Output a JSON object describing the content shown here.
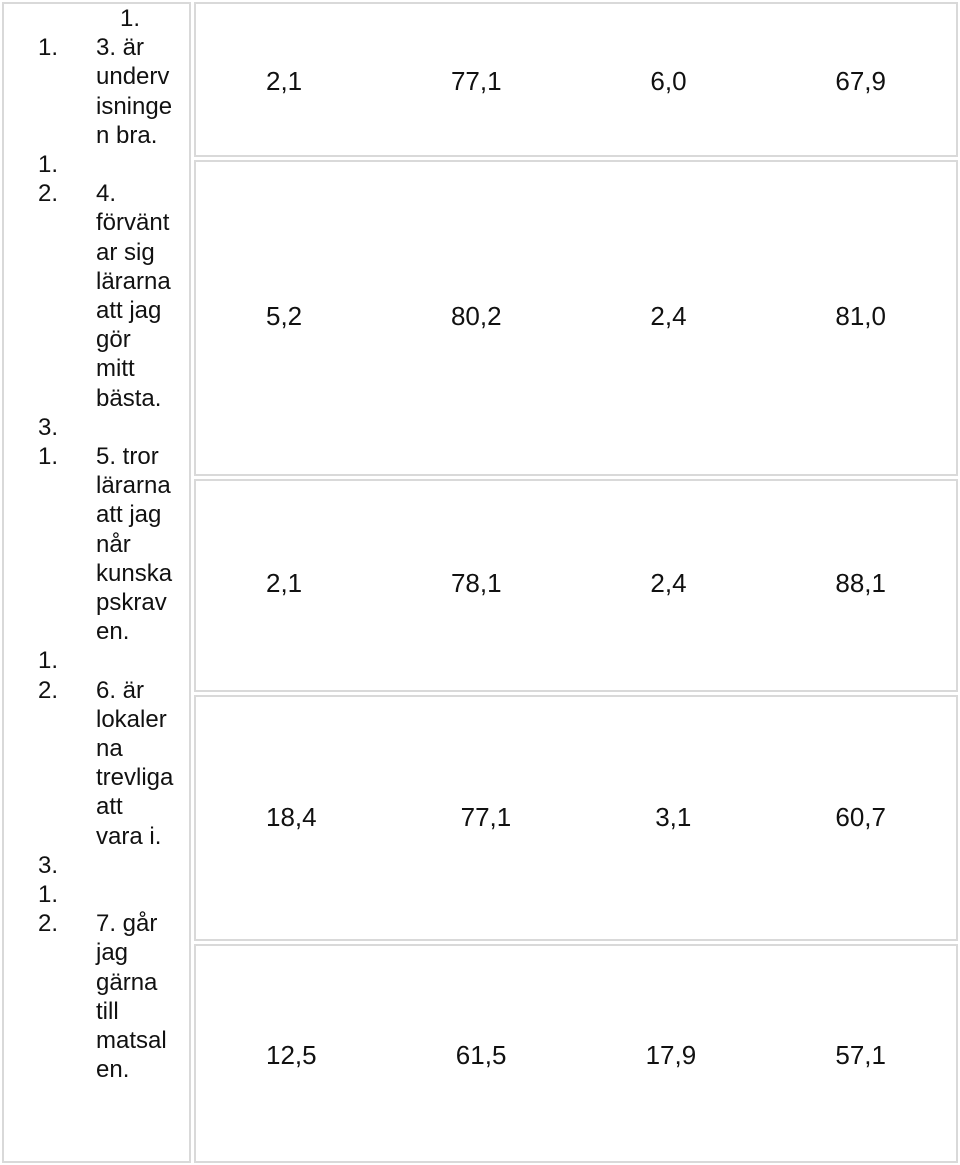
{
  "left_column": {
    "lines": [
      {
        "n": "1.",
        "text": ""
      },
      {
        "n": "1.",
        "text": "3. är"
      },
      {
        "n": "",
        "text": "underv"
      },
      {
        "n": "",
        "text": "isninge"
      },
      {
        "n": "",
        "text": "n bra."
      },
      {
        "n": "1.",
        "text": ""
      },
      {
        "n": "2.",
        "text": "4."
      },
      {
        "n": "",
        "text": "förvänt"
      },
      {
        "n": "",
        "text": "ar sig"
      },
      {
        "n": "",
        "text": "lärarna"
      },
      {
        "n": "",
        "text": "att jag"
      },
      {
        "n": "",
        "text": "gör"
      },
      {
        "n": "",
        "text": "mitt"
      },
      {
        "n": "",
        "text": "bästa."
      },
      {
        "n": "3.",
        "text": ""
      },
      {
        "n": "1.",
        "text": "5. tror"
      },
      {
        "n": "",
        "text": "lärarna"
      },
      {
        "n": "",
        "text": "att jag"
      },
      {
        "n": "",
        "text": "når"
      },
      {
        "n": "",
        "text": "kunska"
      },
      {
        "n": "",
        "text": "pskrav"
      },
      {
        "n": "",
        "text": "en."
      },
      {
        "n": "1.",
        "text": ""
      },
      {
        "n": "2.",
        "text": "6. är"
      },
      {
        "n": "",
        "text": "lokaler"
      },
      {
        "n": "",
        "text": "na"
      },
      {
        "n": "",
        "text": "trevliga"
      },
      {
        "n": "",
        "text": "att"
      },
      {
        "n": "",
        "text": "vara i."
      },
      {
        "n": "3.",
        "text": ""
      },
      {
        "n": "1.",
        "text": ""
      },
      {
        "n": "2.",
        "text": "7. går"
      },
      {
        "n": "",
        "text": "jag"
      },
      {
        "n": "",
        "text": "gärna"
      },
      {
        "n": "",
        "text": "till"
      },
      {
        "n": "",
        "text": "matsal"
      },
      {
        "n": "",
        "text": "en."
      }
    ]
  },
  "rows": [
    {
      "values": [
        "2,1",
        "77,1",
        "6,0",
        "67,9"
      ]
    },
    {
      "values": [
        "5,2",
        "80,2",
        "2,4",
        "81,0"
      ]
    },
    {
      "values": [
        "2,1",
        "78,1",
        "2,4",
        "88,1"
      ]
    },
    {
      "values": [
        "18,4",
        "77,1",
        "3,1",
        "60,7"
      ]
    },
    {
      "values": [
        "12,5",
        "61,5",
        "17,9",
        "57,1"
      ]
    }
  ]
}
